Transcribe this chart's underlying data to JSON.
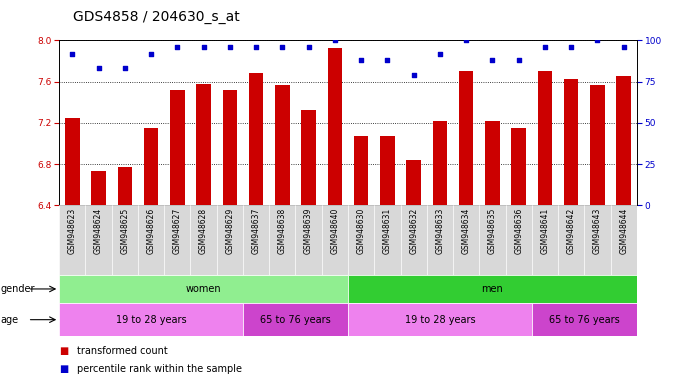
{
  "title": "GDS4858 / 204630_s_at",
  "samples": [
    "GSM948623",
    "GSM948624",
    "GSM948625",
    "GSM948626",
    "GSM948627",
    "GSM948628",
    "GSM948629",
    "GSM948637",
    "GSM948638",
    "GSM948639",
    "GSM948640",
    "GSM948630",
    "GSM948631",
    "GSM948632",
    "GSM948633",
    "GSM948634",
    "GSM948635",
    "GSM948636",
    "GSM948641",
    "GSM948642",
    "GSM948643",
    "GSM948644"
  ],
  "bar_values": [
    7.25,
    6.73,
    6.77,
    7.15,
    7.52,
    7.58,
    7.52,
    7.68,
    7.57,
    7.32,
    7.93,
    7.07,
    7.07,
    6.84,
    7.22,
    7.7,
    7.22,
    7.15,
    7.7,
    7.63,
    7.57,
    7.65
  ],
  "percentile_values": [
    92,
    83,
    83,
    92,
    96,
    96,
    96,
    96,
    96,
    96,
    100,
    88,
    88,
    79,
    92,
    100,
    88,
    88,
    96,
    96,
    100,
    96
  ],
  "ylim_left": [
    6.4,
    8.0
  ],
  "ylim_right": [
    0,
    100
  ],
  "yticks_left": [
    6.4,
    6.8,
    7.2,
    7.6,
    8.0
  ],
  "yticks_right": [
    0,
    25,
    50,
    75,
    100
  ],
  "bar_color": "#cc0000",
  "dot_color": "#0000cc",
  "gender_groups": [
    {
      "label": "women",
      "start": 0,
      "end": 11,
      "color": "#90EE90"
    },
    {
      "label": "men",
      "start": 11,
      "end": 22,
      "color": "#32CD32"
    }
  ],
  "age_groups": [
    {
      "label": "19 to 28 years",
      "start": 0,
      "end": 7,
      "color": "#EE82EE"
    },
    {
      "label": "65 to 76 years",
      "start": 7,
      "end": 11,
      "color": "#CC44CC"
    },
    {
      "label": "19 to 28 years",
      "start": 11,
      "end": 18,
      "color": "#EE82EE"
    },
    {
      "label": "65 to 76 years",
      "start": 18,
      "end": 22,
      "color": "#CC44CC"
    }
  ],
  "title_fontsize": 10,
  "tick_fontsize": 6.5,
  "label_fontsize": 7,
  "xtick_fontsize": 5.5,
  "axis_color_left": "#cc0000",
  "axis_color_right": "#0000cc",
  "bar_width": 0.55
}
